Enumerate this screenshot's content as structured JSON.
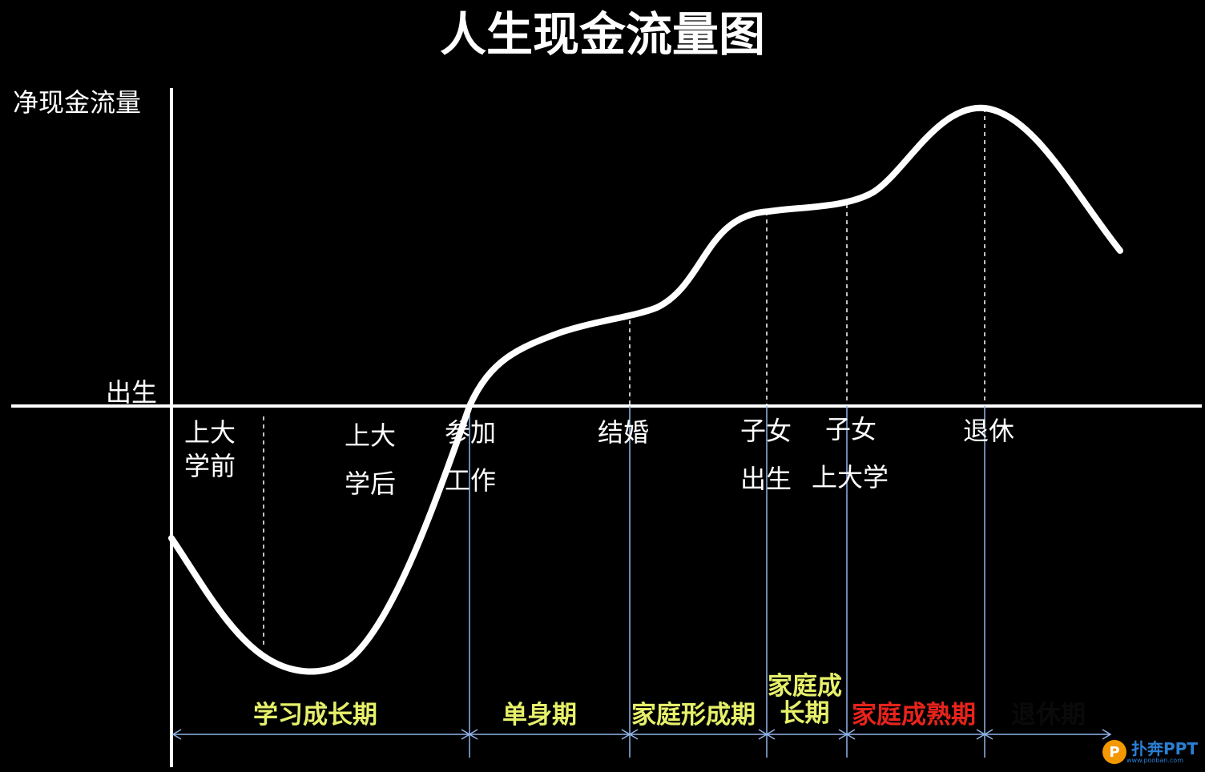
{
  "title": "人生现金流量图",
  "y_axis_label": "净现金流量",
  "origin_label": "出生",
  "events": [
    {
      "id": "pre-college",
      "lines": [
        "上大",
        "学前"
      ]
    },
    {
      "id": "post-college",
      "lines": [
        "上大",
        "学后"
      ]
    },
    {
      "id": "start-work",
      "lines": [
        "参加",
        "工作"
      ]
    },
    {
      "id": "marriage",
      "lines": [
        "结婚"
      ]
    },
    {
      "id": "child-birth",
      "lines": [
        "子女",
        "出生"
      ]
    },
    {
      "id": "child-college",
      "lines": [
        "子女",
        "上大学"
      ]
    },
    {
      "id": "retirement",
      "lines": [
        "退休"
      ]
    }
  ],
  "stages": [
    {
      "id": "study-growth",
      "label": "学习成长期",
      "color": "#e6f06a"
    },
    {
      "id": "single",
      "label": "单身期",
      "color": "#e6f06a"
    },
    {
      "id": "family-formation",
      "label": "家庭形成期",
      "color": "#e6f06a"
    },
    {
      "id": "family-growth",
      "lines": [
        "家庭成",
        "长期"
      ],
      "color": "#e6f06a"
    },
    {
      "id": "family-maturity",
      "label": "家庭成熟期",
      "color": "#e8231c"
    },
    {
      "id": "retired",
      "label": "退休期",
      "color": "#0a0a0a"
    }
  ],
  "watermark": {
    "icon": "P",
    "text": "扑奔PPT",
    "sub": "www.pooban.com"
  },
  "colors": {
    "background": "#000000",
    "curve": "#ffffff",
    "axis": "#ffffff",
    "divider": "#8fb4e8",
    "arrow": "#8fb4e8"
  }
}
